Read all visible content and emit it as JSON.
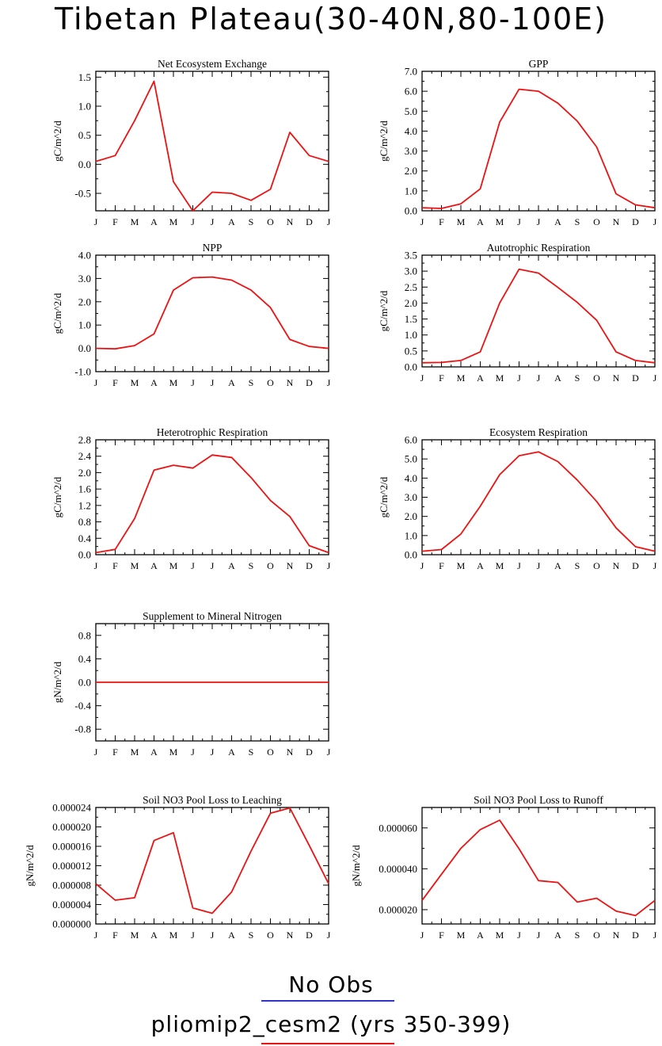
{
  "title": "Tibetan Plateau(30-40N,80-100E)",
  "colors": {
    "model": "#ee1111",
    "obs": "#3333cc",
    "axis": "#000000"
  },
  "legend": {
    "obs_label": "No Obs",
    "model_label": "pliomip2_cesm2 (yrs 350-399)"
  },
  "chart_data": [
    {
      "type": "line",
      "title": "Net Ecosystem Exchange",
      "ylabel": "gC/m^2/d",
      "categories": [
        "J",
        "F",
        "M",
        "A",
        "M",
        "J",
        "J",
        "A",
        "S",
        "O",
        "N",
        "D",
        "J"
      ],
      "values": [
        0.05,
        0.15,
        0.75,
        1.43,
        -0.3,
        -0.8,
        -0.48,
        -0.5,
        -0.62,
        -0.43,
        0.55,
        0.15,
        0.05
      ],
      "ylim": [
        -0.8,
        1.6
      ],
      "yticks": [
        -0.5,
        0,
        0.5,
        1.0,
        1.5
      ],
      "yticklabels": [
        "-0.5",
        "0.0",
        "0.5",
        "1.0",
        "1.5"
      ]
    },
    {
      "type": "line",
      "title": "GPP",
      "ylabel": "gC/m^2/d",
      "categories": [
        "J",
        "F",
        "M",
        "A",
        "M",
        "J",
        "J",
        "A",
        "S",
        "O",
        "N",
        "D",
        "J"
      ],
      "values": [
        0.15,
        0.12,
        0.35,
        1.1,
        4.45,
        6.1,
        6.0,
        5.4,
        4.5,
        3.2,
        0.85,
        0.3,
        0.15
      ],
      "ylim": [
        0,
        7
      ],
      "yticks": [
        0,
        1,
        2,
        3,
        4,
        5,
        6,
        7
      ],
      "yticklabels": [
        "0.0",
        "1.0",
        "2.0",
        "3.0",
        "4.0",
        "5.0",
        "6.0",
        "7.0"
      ]
    },
    {
      "type": "line",
      "title": "NPP",
      "ylabel": "gC/m^2/d",
      "categories": [
        "J",
        "F",
        "M",
        "A",
        "M",
        "J",
        "J",
        "A",
        "S",
        "O",
        "N",
        "D",
        "J"
      ],
      "values": [
        0.0,
        -0.02,
        0.12,
        0.62,
        2.5,
        3.03,
        3.06,
        2.93,
        2.5,
        1.75,
        0.38,
        0.08,
        0.0
      ],
      "ylim": [
        -1,
        4
      ],
      "yticks": [
        -1,
        0,
        1,
        2,
        3,
        4
      ],
      "yticklabels": [
        "-1.0",
        "0.0",
        "1.0",
        "2.0",
        "3.0",
        "4.0"
      ]
    },
    {
      "type": "line",
      "title": "Autotrophic Respiration",
      "ylabel": "gC/m^2/d",
      "categories": [
        "J",
        "F",
        "M",
        "A",
        "M",
        "J",
        "J",
        "A",
        "S",
        "O",
        "N",
        "D",
        "J"
      ],
      "values": [
        0.13,
        0.14,
        0.2,
        0.47,
        2.0,
        3.06,
        2.94,
        2.49,
        2.02,
        1.46,
        0.47,
        0.2,
        0.13
      ],
      "ylim": [
        0,
        3.5
      ],
      "yticks": [
        0,
        0.5,
        1.0,
        1.5,
        2.0,
        2.5,
        3.0,
        3.5
      ],
      "yticklabels": [
        "0.0",
        "0.5",
        "1.0",
        "1.5",
        "2.0",
        "2.5",
        "3.0",
        "3.5"
      ]
    },
    {
      "type": "line",
      "title": "Heterotrophic Respiration",
      "ylabel": "gC/m^2/d",
      "categories": [
        "J",
        "F",
        "M",
        "A",
        "M",
        "J",
        "J",
        "A",
        "S",
        "O",
        "N",
        "D",
        "J"
      ],
      "values": [
        0.05,
        0.13,
        0.88,
        2.06,
        2.18,
        2.11,
        2.43,
        2.37,
        1.88,
        1.32,
        0.93,
        0.22,
        0.05
      ],
      "ylim": [
        0,
        2.8
      ],
      "yticks": [
        0,
        0.4,
        0.8,
        1.2,
        1.6,
        2.0,
        2.4,
        2.8
      ],
      "yticklabels": [
        "0.0",
        "0.4",
        "0.8",
        "1.2",
        "1.6",
        "2.0",
        "2.4",
        "2.8"
      ]
    },
    {
      "type": "line",
      "title": "Ecosystem Respiration",
      "ylabel": "gC/m^2/d",
      "categories": [
        "J",
        "F",
        "M",
        "A",
        "M",
        "J",
        "J",
        "A",
        "S",
        "O",
        "N",
        "D",
        "J"
      ],
      "values": [
        0.18,
        0.27,
        1.08,
        2.53,
        4.18,
        5.17,
        5.37,
        4.86,
        3.9,
        2.78,
        1.4,
        0.42,
        0.18
      ],
      "ylim": [
        0,
        6
      ],
      "yticks": [
        0,
        1,
        2,
        3,
        4,
        5,
        6
      ],
      "yticklabels": [
        "0.0",
        "1.0",
        "2.0",
        "3.0",
        "4.0",
        "5.0",
        "6.0"
      ]
    },
    {
      "type": "line",
      "title": "Supplement to Mineral Nitrogen",
      "ylabel": "gN/m^2/d",
      "categories": [
        "J",
        "F",
        "M",
        "A",
        "M",
        "J",
        "J",
        "A",
        "S",
        "O",
        "N",
        "D",
        "J"
      ],
      "values": [
        0,
        0,
        0,
        0,
        0,
        0,
        0,
        0,
        0,
        0,
        0,
        0,
        0
      ],
      "ylim": [
        -1,
        1
      ],
      "yticks": [
        -0.8,
        -0.4,
        0,
        0.4,
        0.8
      ],
      "yticklabels": [
        "-0.8",
        "-0.4",
        "0.0",
        "0.4",
        "0.8"
      ]
    },
    {
      "type": "line",
      "title": "Soil NO3 Pool Loss to Leaching",
      "ylabel": "gN/m^2/d",
      "categories": [
        "J",
        "F",
        "M",
        "A",
        "M",
        "J",
        "J",
        "A",
        "S",
        "O",
        "N",
        "D",
        "J"
      ],
      "values": [
        8.3e-06,
        4.9e-06,
        5.4e-06,
        1.72e-05,
        1.88e-05,
        3.3e-06,
        2.2e-06,
        6.6e-06,
        1.5e-05,
        2.28e-05,
        2.39e-05,
        1.62e-05,
        8.3e-06
      ],
      "ylim": [
        0,
        2.4e-05
      ],
      "yticks": [
        0,
        4e-06,
        8e-06,
        1.2e-05,
        1.6e-05,
        2e-05,
        2.4e-05
      ],
      "yticklabels": [
        "0.000000",
        "0.000004",
        "0.000008",
        "0.000012",
        "0.000016",
        "0.000020",
        "0.000024"
      ]
    },
    {
      "type": "line",
      "title": "Soil NO3 Pool Loss to Runoff",
      "ylabel": "gN/m^2/d",
      "categories": [
        "J",
        "F",
        "M",
        "A",
        "M",
        "J",
        "J",
        "A",
        "S",
        "O",
        "N",
        "D",
        "J"
      ],
      "values": [
        2.45e-05,
        3.73e-05,
        5e-05,
        5.92e-05,
        6.38e-05,
        4.98e-05,
        3.42e-05,
        3.33e-05,
        2.37e-05,
        2.56e-05,
        1.93e-05,
        1.71e-05,
        2.45e-05
      ],
      "ylim": [
        1.3e-05,
        7e-05
      ],
      "yticks": [
        2e-05,
        4e-05,
        6e-05
      ],
      "yticklabels": [
        "0.000020",
        "0.000040",
        "0.000060"
      ]
    }
  ]
}
